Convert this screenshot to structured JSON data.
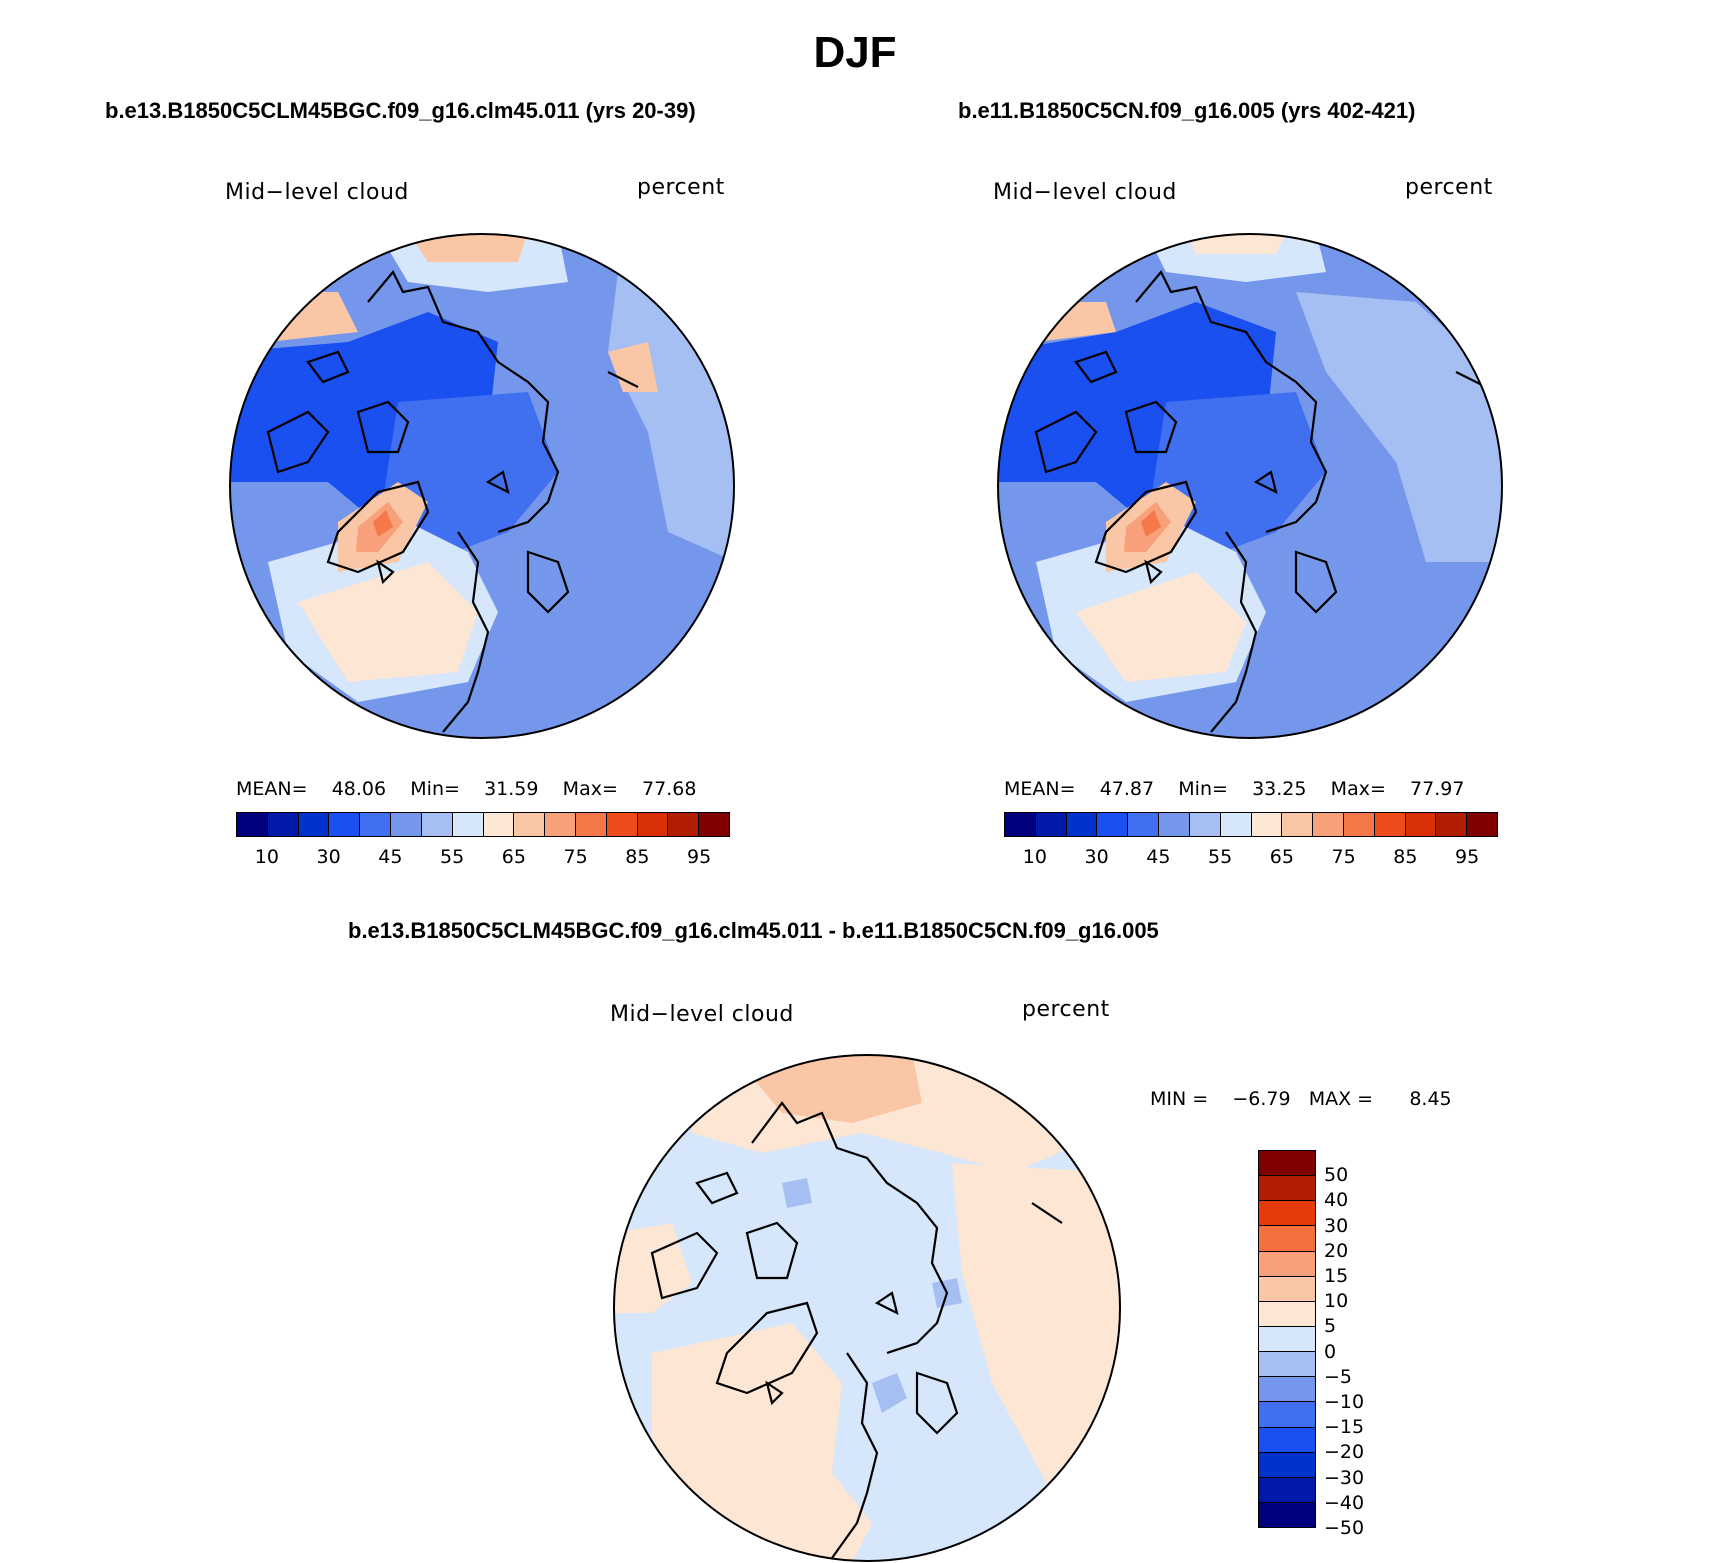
{
  "title": "DJF",
  "panels": [
    {
      "case": "b.e13.B1850C5CLM45BGC.f09_g16.clm45.011 (yrs 20-39)",
      "variable": "Mid−level cloud",
      "units": "percent",
      "stats": {
        "mean_label": "MEAN=",
        "mean": "48.06",
        "min_label": "Min=",
        "min": "31.59",
        "max_label": "Max=",
        "max": "77.68"
      }
    },
    {
      "case": "b.e11.B1850C5CN.f09_g16.005 (yrs 402-421)",
      "variable": "Mid−level cloud",
      "units": "percent",
      "stats": {
        "mean_label": "MEAN=",
        "mean": "47.87",
        "min_label": "Min=",
        "min": "33.25",
        "max_label": "Max=",
        "max": "77.97"
      }
    }
  ],
  "diff_panel": {
    "case": "b.e13.B1850C5CLM45BGC.f09_g16.clm45.011 - b.e11.B1850C5CN.f09_g16.005",
    "variable": "Mid−level cloud",
    "units": "percent",
    "stats": {
      "min_label": "MIN =",
      "min": "−6.79",
      "max_label": "MAX =",
      "max": "8.45"
    }
  },
  "colorbar_abs": {
    "colors": [
      "#00007f",
      "#0019a8",
      "#0033cc",
      "#1a4ff0",
      "#4070ef",
      "#7497ec",
      "#a6bff3",
      "#d6e6fb",
      "#fde6d4",
      "#f9c6a6",
      "#f7a07a",
      "#f57848",
      "#ef4c1c",
      "#d93008",
      "#b01d00",
      "#7f0000"
    ],
    "labels": [
      "10",
      "30",
      "45",
      "55",
      "65",
      "75",
      "85",
      "95"
    ]
  },
  "colorbar_diff": {
    "colors": [
      "#7f0000",
      "#b01d00",
      "#e63a0a",
      "#f5703e",
      "#f7a07a",
      "#f9c6a6",
      "#fde6d4",
      "#d6e6fb",
      "#a6bff3",
      "#7497ec",
      "#4070ef",
      "#1a4ff0",
      "#0033cc",
      "#0019a8",
      "#00007f"
    ],
    "labels": [
      "50",
      "40",
      "30",
      "20",
      "15",
      "10",
      "5",
      "0",
      "−5",
      "−10",
      "−15",
      "−20",
      "−30",
      "−40",
      "−50"
    ]
  },
  "map_fill_colors": {
    "deep_blue": "#1a4ff0",
    "mid_blue": "#4070ef",
    "light_blue": "#7497ec",
    "pale_blue": "#a6bff3",
    "very_pale_blue": "#d6e6fb",
    "cream": "#fde6d4",
    "peach": "#f9c6a6",
    "salmon": "#f7a07a",
    "orange": "#f57848"
  }
}
